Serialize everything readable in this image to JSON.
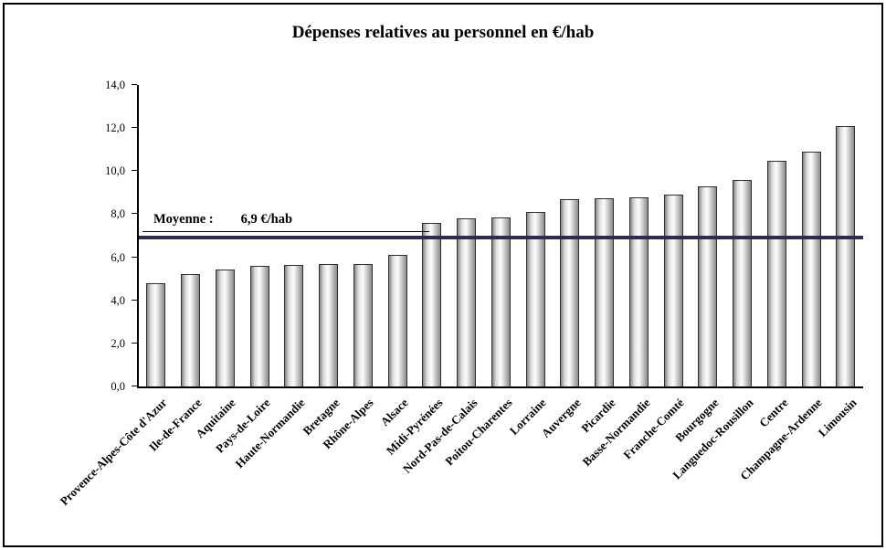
{
  "chart_data": {
    "type": "bar",
    "title": "Dépenses relatives au personnel en €/hab",
    "categories": [
      "Provence-Alpes-Côte d'Azur",
      "Ile-de-France",
      "Aquitaine",
      "Pays-de-Loire",
      "Haute-Normandie",
      "Bretagne",
      "Rhône-Alpes",
      "Alsace",
      "Midi-Pyrénées",
      "Nord-Pas-de-Calais",
      "Poitou-Charentes",
      "Lorraine",
      "Auvergne",
      "Picardie",
      "Basse-Normandie",
      "Franche-Comté",
      "Bourgogne",
      "Languedoc-Rousillon",
      "Centre",
      "Champagne-Ardenne",
      "Limousin"
    ],
    "values": [
      4.8,
      5.2,
      5.45,
      5.6,
      5.65,
      5.7,
      5.7,
      6.1,
      7.6,
      7.8,
      7.85,
      8.1,
      8.7,
      8.75,
      8.8,
      8.9,
      9.3,
      9.6,
      10.5,
      10.9,
      12.1
    ],
    "ylim": [
      0,
      14
    ],
    "ytick_step": 2,
    "ytick_labels": [
      "0,0",
      "2,0",
      "4,0",
      "6,0",
      "8,0",
      "10,0",
      "12,0",
      "14,0"
    ],
    "average": {
      "value": 6.9,
      "label": "Moyenne :",
      "value_text": "6,9 €/hab"
    },
    "grid": false,
    "legend": false,
    "average_line_color": "#2b2b55",
    "bar_color_light": "#f7f7f7",
    "bar_color_dark": "#858585"
  }
}
